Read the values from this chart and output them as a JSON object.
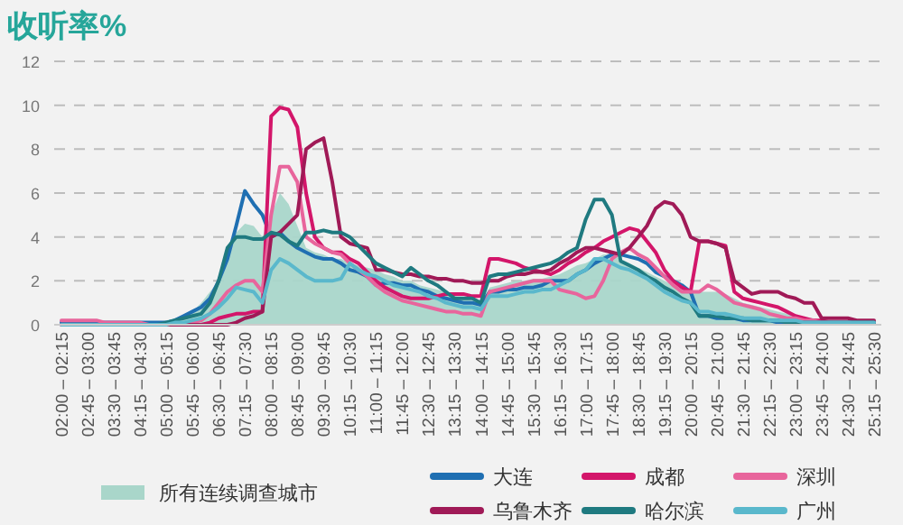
{
  "chart_data": {
    "type": "line",
    "title": "收听率%",
    "categories": [
      "02:00 – 02:15",
      null,
      null,
      "02:45 – 03:00",
      null,
      null,
      "03:30 – 03:45",
      null,
      null,
      "04:15 – 04:30",
      null,
      null,
      "05:00 – 05:15",
      null,
      null,
      "05:45 – 06:00",
      null,
      null,
      "06:30 – 06:45",
      null,
      null,
      "07:15 – 07:30",
      null,
      null,
      "08:00 – 08:15",
      null,
      null,
      "08:45 – 09:00",
      null,
      null,
      "09:30 – 09:45",
      null,
      null,
      "10:15 – 10:30",
      null,
      null,
      "11:00 – 11:15",
      null,
      null,
      "11:45 – 12:00",
      null,
      null,
      "12:30 – 12:45",
      null,
      null,
      "13:15 – 13:30",
      null,
      null,
      "14:00 – 14:15",
      null,
      null,
      "14:45 – 15:00",
      null,
      null,
      "15:30 – 15:45",
      null,
      null,
      "16:15 – 16:30",
      null,
      null,
      "17:00 – 17:15",
      null,
      null,
      "17:45 – 18:00",
      null,
      null,
      "18:30 – 18:45",
      null,
      null,
      "19:15 – 19:30",
      null,
      null,
      "20:00 – 20:15",
      null,
      null,
      "20:45 – 21:00",
      null,
      null,
      "21:30 – 21:45",
      null,
      null,
      "22:15 – 22:30",
      null,
      null,
      "23:00 – 23:15",
      null,
      null,
      "23:45 – 24:00",
      null,
      null,
      "24:30 – 24:45",
      null,
      null,
      "25:15 – 25:30"
    ],
    "series": [
      {
        "name": "所有连续调查城市",
        "type": "area",
        "color": "#a9d6ca",
        "values": [
          0.1,
          0.1,
          0.1,
          0.1,
          0.1,
          0.1,
          0.1,
          0.1,
          0.1,
          0.1,
          0.1,
          0.1,
          0.2,
          0.3,
          0.4,
          0.6,
          1.0,
          1.5,
          2.0,
          3.0,
          4.2,
          4.6,
          4.5,
          4.0,
          5.0,
          6.0,
          5.5,
          4.5,
          3.5,
          3.3,
          3.2,
          3.0,
          3.0,
          2.8,
          2.7,
          2.6,
          2.5,
          2.3,
          2.2,
          2.0,
          2.0,
          1.8,
          1.7,
          1.6,
          1.5,
          1.3,
          1.2,
          1.1,
          1.0,
          1.7,
          1.8,
          1.9,
          2.0,
          2.0,
          2.1,
          2.1,
          2.2,
          2.3,
          2.5,
          2.7,
          2.8,
          3.0,
          3.2,
          3.2,
          3.0,
          2.8,
          2.6,
          2.4,
          2.2,
          2.0,
          1.8,
          1.7,
          1.6,
          1.5,
          1.5,
          1.5,
          1.4,
          1.2,
          1.0,
          0.9,
          0.8,
          0.7,
          0.6,
          0.5,
          0.4,
          0.3,
          0.3,
          0.2,
          0.2,
          0.1,
          0.1,
          0.1,
          0.1,
          0.1
        ]
      },
      {
        "name": "大连",
        "color": "#1f6fb2",
        "values": [
          0.1,
          0.1,
          0.1,
          0.1,
          0.1,
          0.1,
          0.1,
          0.1,
          0.1,
          0.1,
          0.1,
          0.1,
          0.1,
          0.2,
          0.4,
          0.6,
          0.8,
          1.2,
          2.0,
          3.0,
          4.5,
          6.1,
          5.5,
          5.0,
          4.0,
          4.2,
          3.8,
          3.5,
          3.3,
          3.1,
          3.0,
          3.0,
          2.8,
          2.5,
          2.4,
          2.2,
          1.8,
          1.9,
          1.9,
          1.8,
          1.8,
          1.6,
          1.5,
          1.3,
          1.2,
          1.1,
          1.0,
          1.0,
          0.9,
          1.5,
          1.5,
          1.6,
          1.6,
          1.7,
          1.7,
          1.8,
          2.0,
          2.0,
          2.0,
          2.3,
          2.5,
          2.8,
          3.0,
          3.2,
          3.2,
          3.1,
          3.0,
          2.8,
          2.4,
          2.2,
          2.0,
          1.8,
          1.5,
          0.4,
          0.4,
          0.3,
          0.3,
          0.3,
          0.2,
          0.2,
          0.2,
          0.2,
          0.1,
          0.1,
          0.1,
          0.1,
          0.1,
          0.1,
          0.1,
          0.1,
          0.1,
          0.1,
          0.1,
          0.1
        ]
      },
      {
        "name": "成都",
        "color": "#d3166a",
        "values": [
          0,
          0,
          0,
          0,
          0,
          0,
          0,
          0,
          0,
          0,
          0,
          0,
          0,
          0,
          0,
          0,
          0,
          0.1,
          0.3,
          0.4,
          0.5,
          0.5,
          0.6,
          0.6,
          9.5,
          9.9,
          9.8,
          9.0,
          6.0,
          4.0,
          3.5,
          3.3,
          3.3,
          3.0,
          2.8,
          2.4,
          2.0,
          1.7,
          1.5,
          1.3,
          1.2,
          1.2,
          1.2,
          1.3,
          1.4,
          1.4,
          1.4,
          1.3,
          1.3,
          3.0,
          3.0,
          2.9,
          2.8,
          2.6,
          2.5,
          2.4,
          2.3,
          2.5,
          2.8,
          3.0,
          3.3,
          3.5,
          3.8,
          4.0,
          4.2,
          4.4,
          4.3,
          3.8,
          3.3,
          2.5,
          2.0,
          1.7,
          1.5,
          3.8,
          3.8,
          3.7,
          3.6,
          1.5,
          1.2,
          1.1,
          1.0,
          0.9,
          0.8,
          0.6,
          0.4,
          0.3,
          0.2,
          0.2,
          0.1,
          0.1,
          0.1,
          0.1,
          0.1,
          0.1
        ]
      },
      {
        "name": "深圳",
        "color": "#e8659c",
        "values": [
          0.2,
          0.2,
          0.2,
          0.2,
          0.2,
          0.1,
          0.1,
          0.1,
          0.1,
          0.1,
          0,
          0,
          0,
          0,
          0,
          0.1,
          0.2,
          0.5,
          1.0,
          1.5,
          1.8,
          2.0,
          2.0,
          1.5,
          5.0,
          7.2,
          7.2,
          6.5,
          4.0,
          3.7,
          3.5,
          3.3,
          3.2,
          2.8,
          2.5,
          2.2,
          1.8,
          1.5,
          1.3,
          1.1,
          1.0,
          0.9,
          0.8,
          0.7,
          0.6,
          0.6,
          0.5,
          0.5,
          0.4,
          1.5,
          1.6,
          1.7,
          1.8,
          1.9,
          2.0,
          2.0,
          2.0,
          1.6,
          1.5,
          1.4,
          1.2,
          1.3,
          2.0,
          3.0,
          3.3,
          3.5,
          3.2,
          3.0,
          2.6,
          2.2,
          1.8,
          1.5,
          1.5,
          1.5,
          1.8,
          1.6,
          1.3,
          1.0,
          0.9,
          0.8,
          0.7,
          0.5,
          0.4,
          0.3,
          0.3,
          0.2,
          0.2,
          0.1,
          0.1,
          0.1,
          0.1,
          0.1,
          0.1,
          0.1
        ]
      },
      {
        "name": "乌鲁木齐",
        "color": "#a01a57",
        "values": [
          null,
          null,
          null,
          0,
          0,
          0,
          0,
          0,
          0,
          0,
          0,
          0,
          0,
          0,
          0,
          0,
          0,
          0,
          0,
          0,
          0.1,
          0.3,
          0.4,
          0.6,
          4.0,
          4.2,
          4.6,
          5.0,
          8.0,
          8.3,
          8.5,
          6.5,
          4.0,
          3.7,
          3.6,
          3.5,
          2.5,
          2.5,
          2.4,
          2.3,
          2.3,
          2.2,
          2.2,
          2.1,
          2.1,
          2.0,
          2.0,
          1.9,
          1.9,
          2.0,
          2.0,
          2.2,
          2.3,
          2.3,
          2.4,
          2.4,
          2.5,
          2.8,
          3.0,
          3.3,
          3.5,
          3.5,
          3.4,
          3.3,
          3.2,
          3.5,
          4.0,
          4.5,
          5.3,
          5.6,
          5.5,
          5.0,
          4.0,
          3.8,
          3.8,
          3.7,
          3.5,
          2.0,
          1.7,
          1.4,
          1.5,
          1.5,
          1.5,
          1.3,
          1.2,
          1.0,
          1.0,
          0.3,
          0.3,
          0.3,
          0.3,
          0.2,
          0.2,
          0.2
        ]
      },
      {
        "name": "哈尔滨",
        "color": "#1f7a80",
        "values": [
          null,
          null,
          null,
          null,
          null,
          null,
          null,
          0,
          0,
          0,
          0,
          0,
          0.1,
          0.2,
          0.3,
          0.4,
          0.5,
          1.0,
          2.0,
          3.5,
          4.0,
          4.0,
          3.9,
          3.9,
          4.2,
          4.1,
          3.8,
          3.6,
          4.2,
          4.2,
          4.3,
          4.2,
          4.2,
          4.0,
          3.6,
          3.2,
          2.8,
          2.6,
          2.4,
          2.2,
          2.6,
          2.3,
          2.0,
          1.8,
          1.5,
          1.2,
          1.2,
          1.2,
          1.0,
          2.2,
          2.3,
          2.3,
          2.4,
          2.5,
          2.6,
          2.7,
          2.8,
          3.0,
          3.3,
          3.5,
          4.8,
          5.7,
          5.7,
          5.0,
          2.9,
          2.7,
          2.5,
          2.2,
          2.0,
          1.7,
          1.5,
          1.2,
          1.0,
          0.4,
          0.4,
          0.4,
          0.3,
          0.3,
          0.3,
          0.2,
          0.2,
          0.2,
          0.2,
          0.1,
          0.1,
          0.1,
          0.1,
          0.1,
          0.1,
          0.1,
          0.1,
          0.1,
          0.1,
          0.1
        ]
      },
      {
        "name": "广州",
        "color": "#5ab8cc",
        "values": [
          0,
          0,
          0,
          0,
          0,
          0,
          0,
          0,
          0,
          0,
          0,
          0,
          0,
          0.1,
          0.1,
          0.2,
          0.3,
          0.5,
          0.8,
          1.2,
          1.7,
          1.6,
          1.5,
          1.0,
          2.5,
          3.0,
          2.8,
          2.5,
          2.2,
          2.0,
          2.0,
          2.0,
          2.1,
          2.8,
          2.5,
          2.3,
          2.2,
          2.0,
          1.8,
          1.7,
          1.6,
          1.5,
          1.3,
          1.2,
          1.0,
          0.9,
          0.8,
          0.8,
          0.7,
          1.3,
          1.3,
          1.3,
          1.4,
          1.5,
          1.5,
          1.6,
          1.6,
          1.8,
          2.0,
          2.3,
          2.5,
          3.0,
          3.0,
          2.8,
          2.6,
          2.5,
          2.3,
          2.1,
          1.8,
          1.5,
          1.3,
          1.1,
          1.0,
          0.6,
          0.6,
          0.5,
          0.5,
          0.4,
          0.3,
          0.3,
          0.3,
          0.2,
          0.2,
          0.2,
          0.2,
          0.1,
          0.1,
          0.1,
          0.1,
          0.1,
          0.1,
          0.1,
          0.1,
          0.1
        ]
      }
    ],
    "ylim": [
      0,
      12
    ],
    "yticks": [
      0,
      2,
      4,
      6,
      8,
      10,
      12
    ],
    "grid": "y",
    "legend": "bottom",
    "line_style": "solid",
    "marker": "none"
  }
}
